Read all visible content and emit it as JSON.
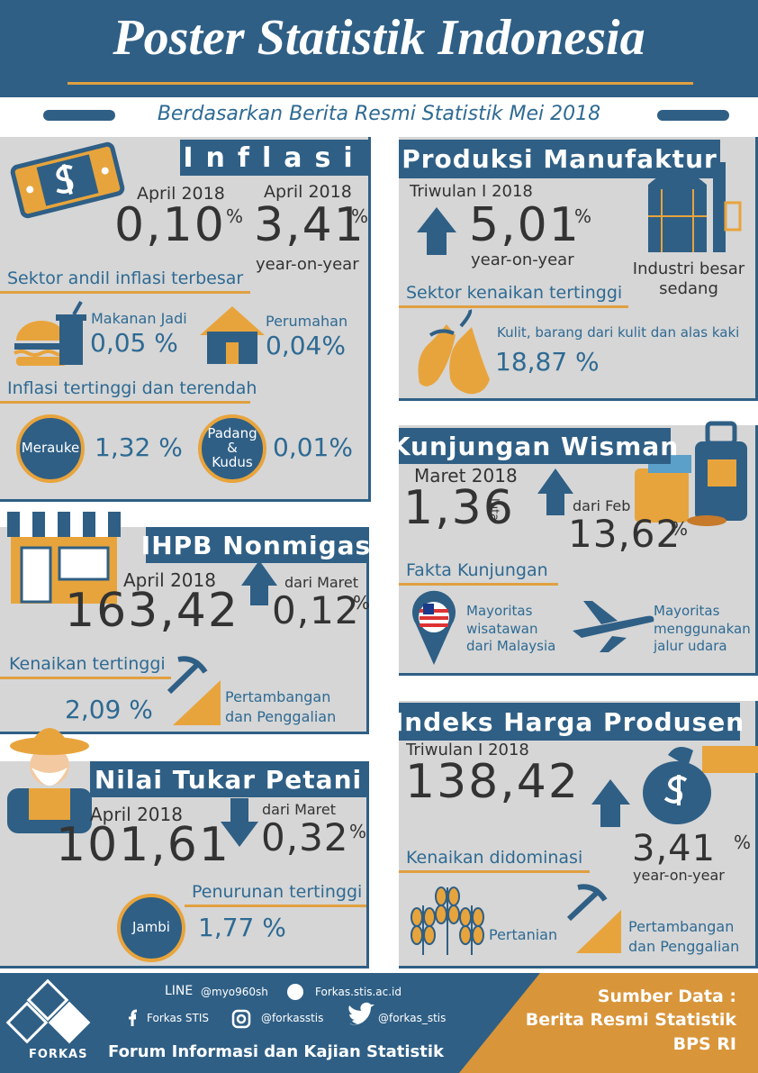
{
  "header": {
    "title": "Poster Statistik Indonesia",
    "subtitle": "Berdasarkan Berita Resmi Statistik Mei 2018"
  },
  "inflasi": {
    "title": "Inflasi",
    "mtm": {
      "period": "April 2018",
      "value": "0,10",
      "unit": "%"
    },
    "yoy": {
      "period": "April 2018",
      "value": "3,41",
      "unit": "%",
      "note": "year-on-year"
    },
    "sektor_title": "Sektor andil inflasi terbesar",
    "sektor": [
      {
        "label": "Makanan Jadi",
        "value": "0,05 %"
      },
      {
        "label": "Perumahan",
        "value": "0,04%"
      }
    ],
    "kota_title": "Inflasi tertinggi dan terendah",
    "kota": [
      {
        "label": "Merauke",
        "value": "1,32 %"
      },
      {
        "label": "Padang & Kudus",
        "value": "0,01%"
      }
    ]
  },
  "ihpb": {
    "title": "IHPB Nonmigas",
    "period": "April 2018",
    "value": "163,42",
    "change_label": "dari Maret",
    "change": "0,12",
    "unit": "%",
    "top_title": "Kenaikan tertinggi",
    "top_value": "2,09 %",
    "top_label": "Pertambangan dan Penggalian"
  },
  "ntp": {
    "title": "Nilai Tukar Petani",
    "period": "April 2018",
    "value": "101,61",
    "change_label": "dari Maret",
    "change": "0,32",
    "unit": "%",
    "low_title": "Penurunan tertinggi",
    "low_label": "Jambi",
    "low_value": "1,77 %"
  },
  "manufaktur": {
    "title": "Produksi Manufaktur",
    "period": "Triwulan I 2018",
    "value": "5,01",
    "unit": "%",
    "note": "year-on-year",
    "industry": "Industri besar sedang",
    "top_title": "Sektor kenaikan tertinggi",
    "top_label": "Kulit, barang dari kulit dan alas kaki",
    "top_value": "18,87 %"
  },
  "wisman": {
    "title": "Kunjungan Wisman",
    "period": "Maret 2018",
    "value": "1,36",
    "value_unit": "Juta",
    "change_label": "dari Feb",
    "change": "13,62",
    "unit": "%",
    "facts_title": "Fakta Kunjungan",
    "facts": [
      "Mayoritas wisatawan dari Malaysia",
      "Mayoritas menggunakan jalur udara"
    ]
  },
  "ihp": {
    "title": "Indeks Harga Produsen",
    "period": "Triwulan I 2018",
    "value": "138,42",
    "change": "3,41",
    "unit": "%",
    "note": "year-on-year",
    "dominant_title": "Kenaikan didominasi",
    "dominant": [
      "Pertanian",
      "Pertambangan dan Penggalian"
    ]
  },
  "footer": {
    "logo": "FORKAS",
    "line_label": "LINE",
    "line_id": "@myo960sh",
    "website": "Forkas.stis.ac.id",
    "facebook": "Forkas STIS",
    "instagram": "@forkasstis",
    "twitter": "@forkas_stis",
    "org": "Forum Informasi dan Kajian Statistik",
    "source_title": "Sumber Data :",
    "source_1": "Berita Resmi Statistik",
    "source_2": "BPS RI"
  }
}
